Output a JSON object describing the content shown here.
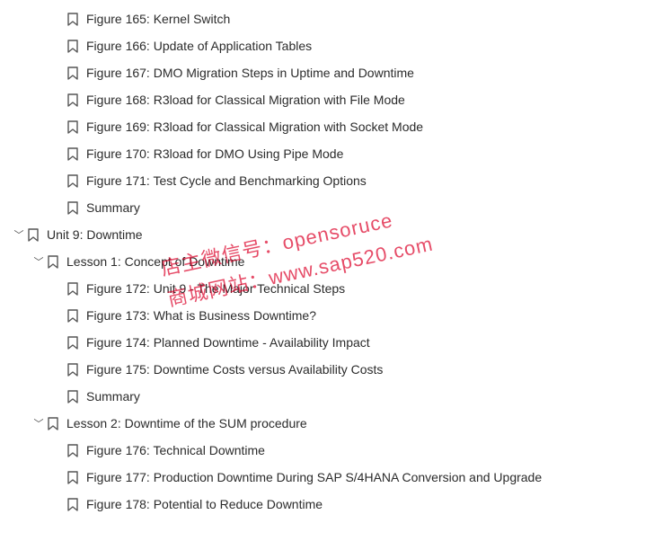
{
  "indentUnit": 22,
  "baseIndent": 14,
  "iconStroke": "#555555",
  "chevronDown": "﹀",
  "items": [
    {
      "depth": 2,
      "expandable": false,
      "label": "Figure 165: Kernel Switch"
    },
    {
      "depth": 2,
      "expandable": false,
      "label": "Figure 166: Update of Application Tables"
    },
    {
      "depth": 2,
      "expandable": false,
      "label": "Figure 167: DMO Migration Steps in Uptime and Downtime"
    },
    {
      "depth": 2,
      "expandable": false,
      "label": "Figure 168: R3load for Classical Migration with File Mode"
    },
    {
      "depth": 2,
      "expandable": false,
      "label": "Figure 169: R3load for Classical Migration with Socket Mode"
    },
    {
      "depth": 2,
      "expandable": false,
      "label": "Figure 170: R3load for DMO Using Pipe Mode"
    },
    {
      "depth": 2,
      "expandable": false,
      "label": "Figure 171: Test Cycle and Benchmarking Options"
    },
    {
      "depth": 2,
      "expandable": false,
      "label": "Summary"
    },
    {
      "depth": 0,
      "expandable": true,
      "label": "Unit 9: Downtime"
    },
    {
      "depth": 1,
      "expandable": true,
      "label": "Lesson 1: Concept of Downtime"
    },
    {
      "depth": 2,
      "expandable": false,
      "label": "Figure 172: Unit 9 - The Major Technical Steps"
    },
    {
      "depth": 2,
      "expandable": false,
      "label": "Figure 173: What is Business Downtime?"
    },
    {
      "depth": 2,
      "expandable": false,
      "label": "Figure 174: Planned Downtime - Availability Impact"
    },
    {
      "depth": 2,
      "expandable": false,
      "label": "Figure 175: Downtime Costs versus Availability Costs"
    },
    {
      "depth": 2,
      "expandable": false,
      "label": "Summary"
    },
    {
      "depth": 1,
      "expandable": true,
      "label": "Lesson 2: Downtime of the SUM procedure"
    },
    {
      "depth": 2,
      "expandable": false,
      "label": "Figure 176: Technical Downtime"
    },
    {
      "depth": 2,
      "expandable": false,
      "label": "Figure 177: Production Downtime During SAP S/4HANA Conversion and Upgrade"
    },
    {
      "depth": 2,
      "expandable": false,
      "label": "Figure 178: Potential to Reduce Downtime"
    }
  ],
  "watermark": {
    "line1": "店主微信号：opensoruce",
    "line2": "商城网站：www.sap520.com"
  }
}
